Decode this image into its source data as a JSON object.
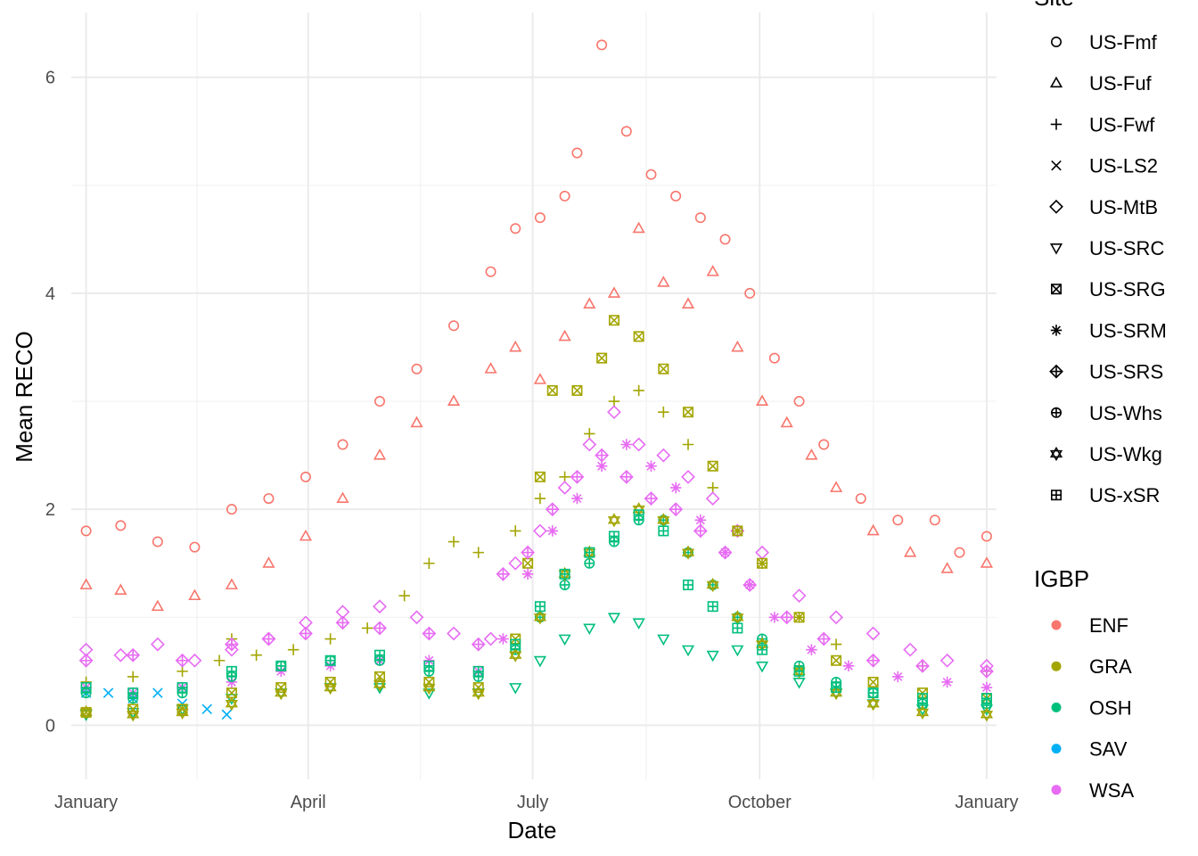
{
  "chart_data": {
    "type": "scatter",
    "title": "",
    "xlabel": "Date",
    "ylabel": "Mean RECO",
    "x_scale": "day_of_year",
    "xlim": [
      -5,
      370
    ],
    "ylim": [
      -0.5,
      6.6
    ],
    "grid": true,
    "x_ticks": [
      {
        "value": 1,
        "label": "January"
      },
      {
        "value": 91,
        "label": "April"
      },
      {
        "value": 182,
        "label": "July"
      },
      {
        "value": 274,
        "label": "October"
      },
      {
        "value": 366,
        "label": "January"
      }
    ],
    "y_ticks": [
      {
        "value": 0,
        "label": "0"
      },
      {
        "value": 2,
        "label": "2"
      },
      {
        "value": 4,
        "label": "4"
      },
      {
        "value": 6,
        "label": "6"
      }
    ],
    "legend_site": {
      "title": "Site",
      "position": "right",
      "items": [
        {
          "label": "US-Fmf",
          "shape": "circle"
        },
        {
          "label": "US-Fuf",
          "shape": "triangle"
        },
        {
          "label": "US-Fwf",
          "shape": "plus"
        },
        {
          "label": "US-LS2",
          "shape": "cross"
        },
        {
          "label": "US-MtB",
          "shape": "diamond"
        },
        {
          "label": "US-SRC",
          "shape": "triangle-down"
        },
        {
          "label": "US-SRG",
          "shape": "square-cross"
        },
        {
          "label": "US-SRM",
          "shape": "asterisk"
        },
        {
          "label": "US-SRS",
          "shape": "diamond-plus"
        },
        {
          "label": "US-Whs",
          "shape": "circle-plus"
        },
        {
          "label": "US-Wkg",
          "shape": "star-of-david"
        },
        {
          "label": "US-xSR",
          "shape": "square-plus"
        }
      ]
    },
    "legend_igbp": {
      "title": "IGBP",
      "position": "right",
      "items": [
        {
          "label": "ENF",
          "color": "#F8766D"
        },
        {
          "label": "GRA",
          "color": "#A3A500"
        },
        {
          "label": "OSH",
          "color": "#00BF7D"
        },
        {
          "label": "SAV",
          "color": "#00B0F6"
        },
        {
          "label": "WSA",
          "color": "#E76BF3"
        }
      ]
    },
    "series": [
      {
        "name": "US-Fmf",
        "igbp": "ENF",
        "shape": "circle",
        "x": [
          1,
          15,
          30,
          45,
          60,
          75,
          90,
          105,
          120,
          135,
          150,
          165,
          175,
          185,
          195,
          200,
          210,
          220,
          230,
          240,
          250,
          260,
          270,
          280,
          290,
          300,
          315,
          330,
          345,
          355,
          366
        ],
        "y": [
          1.8,
          1.85,
          1.7,
          1.65,
          2.0,
          2.1,
          2.3,
          2.6,
          3.0,
          3.3,
          3.7,
          4.2,
          4.6,
          4.7,
          4.9,
          5.3,
          6.3,
          5.5,
          5.1,
          4.9,
          4.7,
          4.5,
          4.0,
          3.4,
          3.0,
          2.6,
          2.1,
          1.9,
          1.9,
          1.6,
          1.75
        ]
      },
      {
        "name": "US-Fuf",
        "igbp": "ENF",
        "shape": "triangle",
        "x": [
          1,
          15,
          30,
          45,
          60,
          75,
          90,
          105,
          120,
          135,
          150,
          165,
          175,
          185,
          195,
          205,
          215,
          225,
          235,
          245,
          255,
          265,
          275,
          285,
          295,
          305,
          320,
          335,
          350,
          366
        ],
        "y": [
          1.3,
          1.25,
          1.1,
          1.2,
          1.3,
          1.5,
          1.75,
          2.1,
          2.5,
          2.8,
          3.0,
          3.3,
          3.5,
          3.2,
          3.6,
          3.9,
          4.0,
          4.6,
          4.1,
          3.9,
          4.2,
          3.5,
          3.0,
          2.8,
          2.5,
          2.2,
          1.8,
          1.6,
          1.45,
          1.5
        ]
      },
      {
        "name": "US-Fwf",
        "igbp": "GRA",
        "shape": "plus",
        "x": [
          1,
          20,
          40,
          55,
          60,
          70,
          85,
          100,
          115,
          130,
          140,
          150,
          160,
          175,
          185,
          195,
          205,
          215,
          225,
          235,
          245,
          255,
          265,
          275,
          290,
          305,
          320,
          340,
          366
        ],
        "y": [
          0.4,
          0.45,
          0.5,
          0.6,
          0.8,
          0.65,
          0.7,
          0.8,
          0.9,
          1.2,
          1.5,
          1.7,
          1.6,
          1.8,
          2.1,
          2.3,
          2.7,
          3.0,
          3.1,
          2.9,
          2.6,
          2.2,
          1.8,
          1.5,
          1.0,
          0.75,
          0.6,
          0.55,
          0.5
        ]
      },
      {
        "name": "US-LS2",
        "igbp": "SAV",
        "shape": "cross",
        "x": [
          1,
          10,
          20,
          30,
          40,
          50,
          58
        ],
        "y": [
          0.3,
          0.3,
          0.25,
          0.3,
          0.2,
          0.15,
          0.1
        ]
      },
      {
        "name": "US-MtB",
        "igbp": "WSA",
        "shape": "diamond",
        "x": [
          1,
          15,
          30,
          45,
          60,
          75,
          90,
          105,
          120,
          135,
          150,
          165,
          175,
          185,
          195,
          205,
          215,
          225,
          235,
          245,
          255,
          265,
          275,
          290,
          305,
          320,
          335,
          350,
          366
        ],
        "y": [
          0.7,
          0.65,
          0.75,
          0.6,
          0.7,
          0.8,
          0.95,
          1.05,
          1.1,
          1.0,
          0.85,
          0.8,
          1.5,
          1.8,
          2.2,
          2.6,
          2.9,
          2.6,
          2.5,
          2.3,
          2.1,
          1.8,
          1.6,
          1.2,
          1.0,
          0.85,
          0.7,
          0.6,
          0.55
        ]
      },
      {
        "name": "US-SRC",
        "igbp": "OSH",
        "shape": "triangle-down",
        "x": [
          1,
          20,
          40,
          60,
          80,
          100,
          120,
          140,
          160,
          175,
          185,
          195,
          205,
          215,
          225,
          235,
          245,
          255,
          265,
          275,
          290,
          305,
          320,
          340,
          366
        ],
        "y": [
          0.1,
          0.12,
          0.15,
          0.25,
          0.3,
          0.35,
          0.35,
          0.3,
          0.3,
          0.35,
          0.6,
          0.8,
          0.9,
          1.0,
          0.95,
          0.8,
          0.7,
          0.65,
          0.7,
          0.55,
          0.4,
          0.3,
          0.2,
          0.15,
          0.15
        ]
      },
      {
        "name": "US-SRG",
        "igbp": "GRA",
        "shape": "square-cross",
        "x": [
          1,
          20,
          40,
          60,
          80,
          100,
          120,
          140,
          160,
          175,
          180,
          185,
          190,
          200,
          210,
          215,
          225,
          235,
          245,
          255,
          265,
          275,
          290,
          305,
          320,
          340,
          366
        ],
        "y": [
          0.12,
          0.15,
          0.15,
          0.3,
          0.35,
          0.4,
          0.45,
          0.4,
          0.35,
          0.8,
          1.5,
          2.3,
          3.1,
          3.1,
          3.4,
          3.75,
          3.6,
          3.3,
          2.9,
          2.4,
          1.8,
          1.5,
          1.0,
          0.6,
          0.4,
          0.3,
          0.25
        ]
      },
      {
        "name": "US-SRM",
        "igbp": "WSA",
        "shape": "asterisk",
        "x": [
          1,
          20,
          40,
          60,
          80,
          100,
          120,
          140,
          160,
          170,
          180,
          190,
          200,
          210,
          220,
          230,
          240,
          250,
          260,
          270,
          280,
          295,
          310,
          330,
          350,
          366
        ],
        "y": [
          0.35,
          0.3,
          0.35,
          0.4,
          0.5,
          0.55,
          0.6,
          0.6,
          0.5,
          0.8,
          1.4,
          1.8,
          2.1,
          2.4,
          2.6,
          2.4,
          2.2,
          1.9,
          1.6,
          1.3,
          1.0,
          0.7,
          0.55,
          0.45,
          0.4,
          0.35
        ]
      },
      {
        "name": "US-SRS",
        "igbp": "WSA",
        "shape": "diamond-plus",
        "x": [
          1,
          20,
          40,
          60,
          75,
          90,
          105,
          120,
          140,
          160,
          170,
          180,
          190,
          200,
          210,
          220,
          230,
          240,
          250,
          260,
          270,
          285,
          300,
          320,
          340,
          366
        ],
        "y": [
          0.6,
          0.65,
          0.6,
          0.75,
          0.8,
          0.85,
          0.95,
          0.9,
          0.85,
          0.75,
          1.4,
          1.6,
          2.0,
          2.3,
          2.5,
          2.3,
          2.1,
          2.0,
          1.8,
          1.6,
          1.3,
          1.0,
          0.8,
          0.6,
          0.55,
          0.5
        ]
      },
      {
        "name": "US-Whs",
        "igbp": "OSH",
        "shape": "circle-plus",
        "x": [
          1,
          20,
          40,
          60,
          80,
          100,
          120,
          140,
          160,
          175,
          185,
          195,
          205,
          215,
          225,
          235,
          245,
          255,
          265,
          275,
          290,
          305,
          320,
          340,
          366
        ],
        "y": [
          0.3,
          0.25,
          0.3,
          0.45,
          0.55,
          0.6,
          0.6,
          0.5,
          0.45,
          0.7,
          1.0,
          1.3,
          1.5,
          1.7,
          1.9,
          1.9,
          1.6,
          1.3,
          1.0,
          0.8,
          0.55,
          0.4,
          0.3,
          0.2,
          0.2
        ]
      },
      {
        "name": "US-Wkg",
        "igbp": "GRA",
        "shape": "star-of-david",
        "x": [
          1,
          20,
          40,
          60,
          80,
          100,
          120,
          140,
          160,
          175,
          185,
          195,
          205,
          215,
          225,
          235,
          245,
          255,
          265,
          275,
          290,
          305,
          320,
          340,
          366
        ],
        "y": [
          0.12,
          0.1,
          0.12,
          0.2,
          0.3,
          0.35,
          0.38,
          0.35,
          0.3,
          0.65,
          1.0,
          1.4,
          1.6,
          1.9,
          2.0,
          1.9,
          1.6,
          1.3,
          1.0,
          0.75,
          0.5,
          0.3,
          0.2,
          0.12,
          0.1
        ]
      },
      {
        "name": "US-xSR",
        "igbp": "OSH",
        "shape": "square-plus",
        "x": [
          1,
          20,
          40,
          60,
          80,
          100,
          120,
          140,
          160,
          175,
          185,
          195,
          205,
          215,
          225,
          235,
          245,
          255,
          265,
          275,
          290,
          305,
          320,
          340,
          366
        ],
        "y": [
          0.35,
          0.3,
          0.35,
          0.5,
          0.55,
          0.6,
          0.65,
          0.55,
          0.5,
          0.75,
          1.1,
          1.4,
          1.6,
          1.75,
          1.95,
          1.8,
          1.3,
          1.1,
          0.9,
          0.7,
          0.5,
          0.35,
          0.3,
          0.25,
          0.25
        ]
      }
    ]
  }
}
